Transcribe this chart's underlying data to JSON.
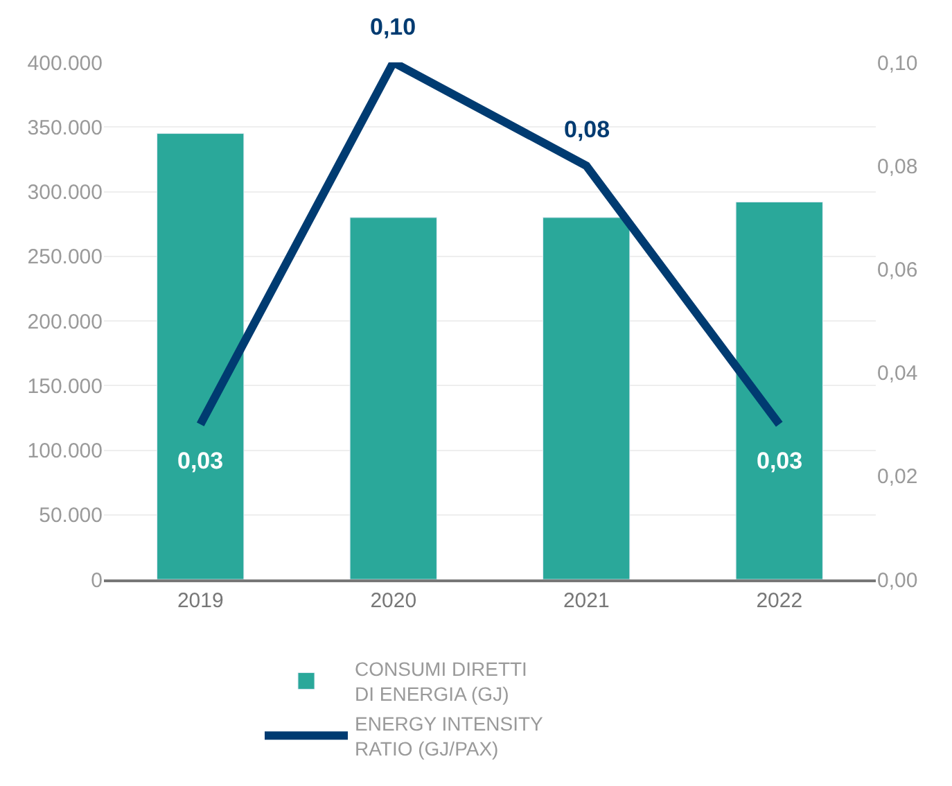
{
  "chart_data": {
    "type": "bar",
    "categories": [
      "2019",
      "2020",
      "2021",
      "2022"
    ],
    "series": [
      {
        "name": "CONSUMI DIRETTI DI ENERGIA (GJ)",
        "color": "#2aa89a",
        "values": [
          345000,
          280000,
          280000,
          292000
        ]
      },
      {
        "name": "ENERGY INTENSITY RATIO (GJ/PAX)",
        "type": "line",
        "axis": "y2",
        "color": "#003b71",
        "values": [
          0.03,
          0.1,
          0.08,
          0.03
        ],
        "value_labels": [
          "0,03",
          "0,10",
          "0,08",
          "0,03"
        ]
      }
    ],
    "ylim": [
      0,
      400000
    ],
    "yticks": [
      0,
      {
        "value": 50000,
        "label": "50.000"
      },
      {
        "value": 100000,
        "label": "100.000"
      },
      {
        "value": 150000,
        "label": "150.000"
      },
      {
        "value": 200000,
        "label": "200.000"
      },
      {
        "value": 250000,
        "label": "250.000"
      },
      {
        "value": 300000,
        "label": "300.000"
      },
      {
        "value": 350000,
        "label": "350.000"
      },
      {
        "value": 400000,
        "label": "400.000"
      }
    ],
    "y2lim": [
      0,
      0.1
    ],
    "y2ticks": [
      {
        "value": 0,
        "label": "0,00"
      },
      {
        "value": 0.02,
        "label": "0,02"
      },
      {
        "value": 0.04,
        "label": "0,04"
      },
      {
        "value": 0.06,
        "label": "0,06"
      },
      {
        "value": 0.08,
        "label": "0,08"
      },
      {
        "value": 0.1,
        "label": "0,10"
      }
    ],
    "grid": "y",
    "legend": "bottom",
    "marker": "none",
    "line_style": "solid"
  }
}
